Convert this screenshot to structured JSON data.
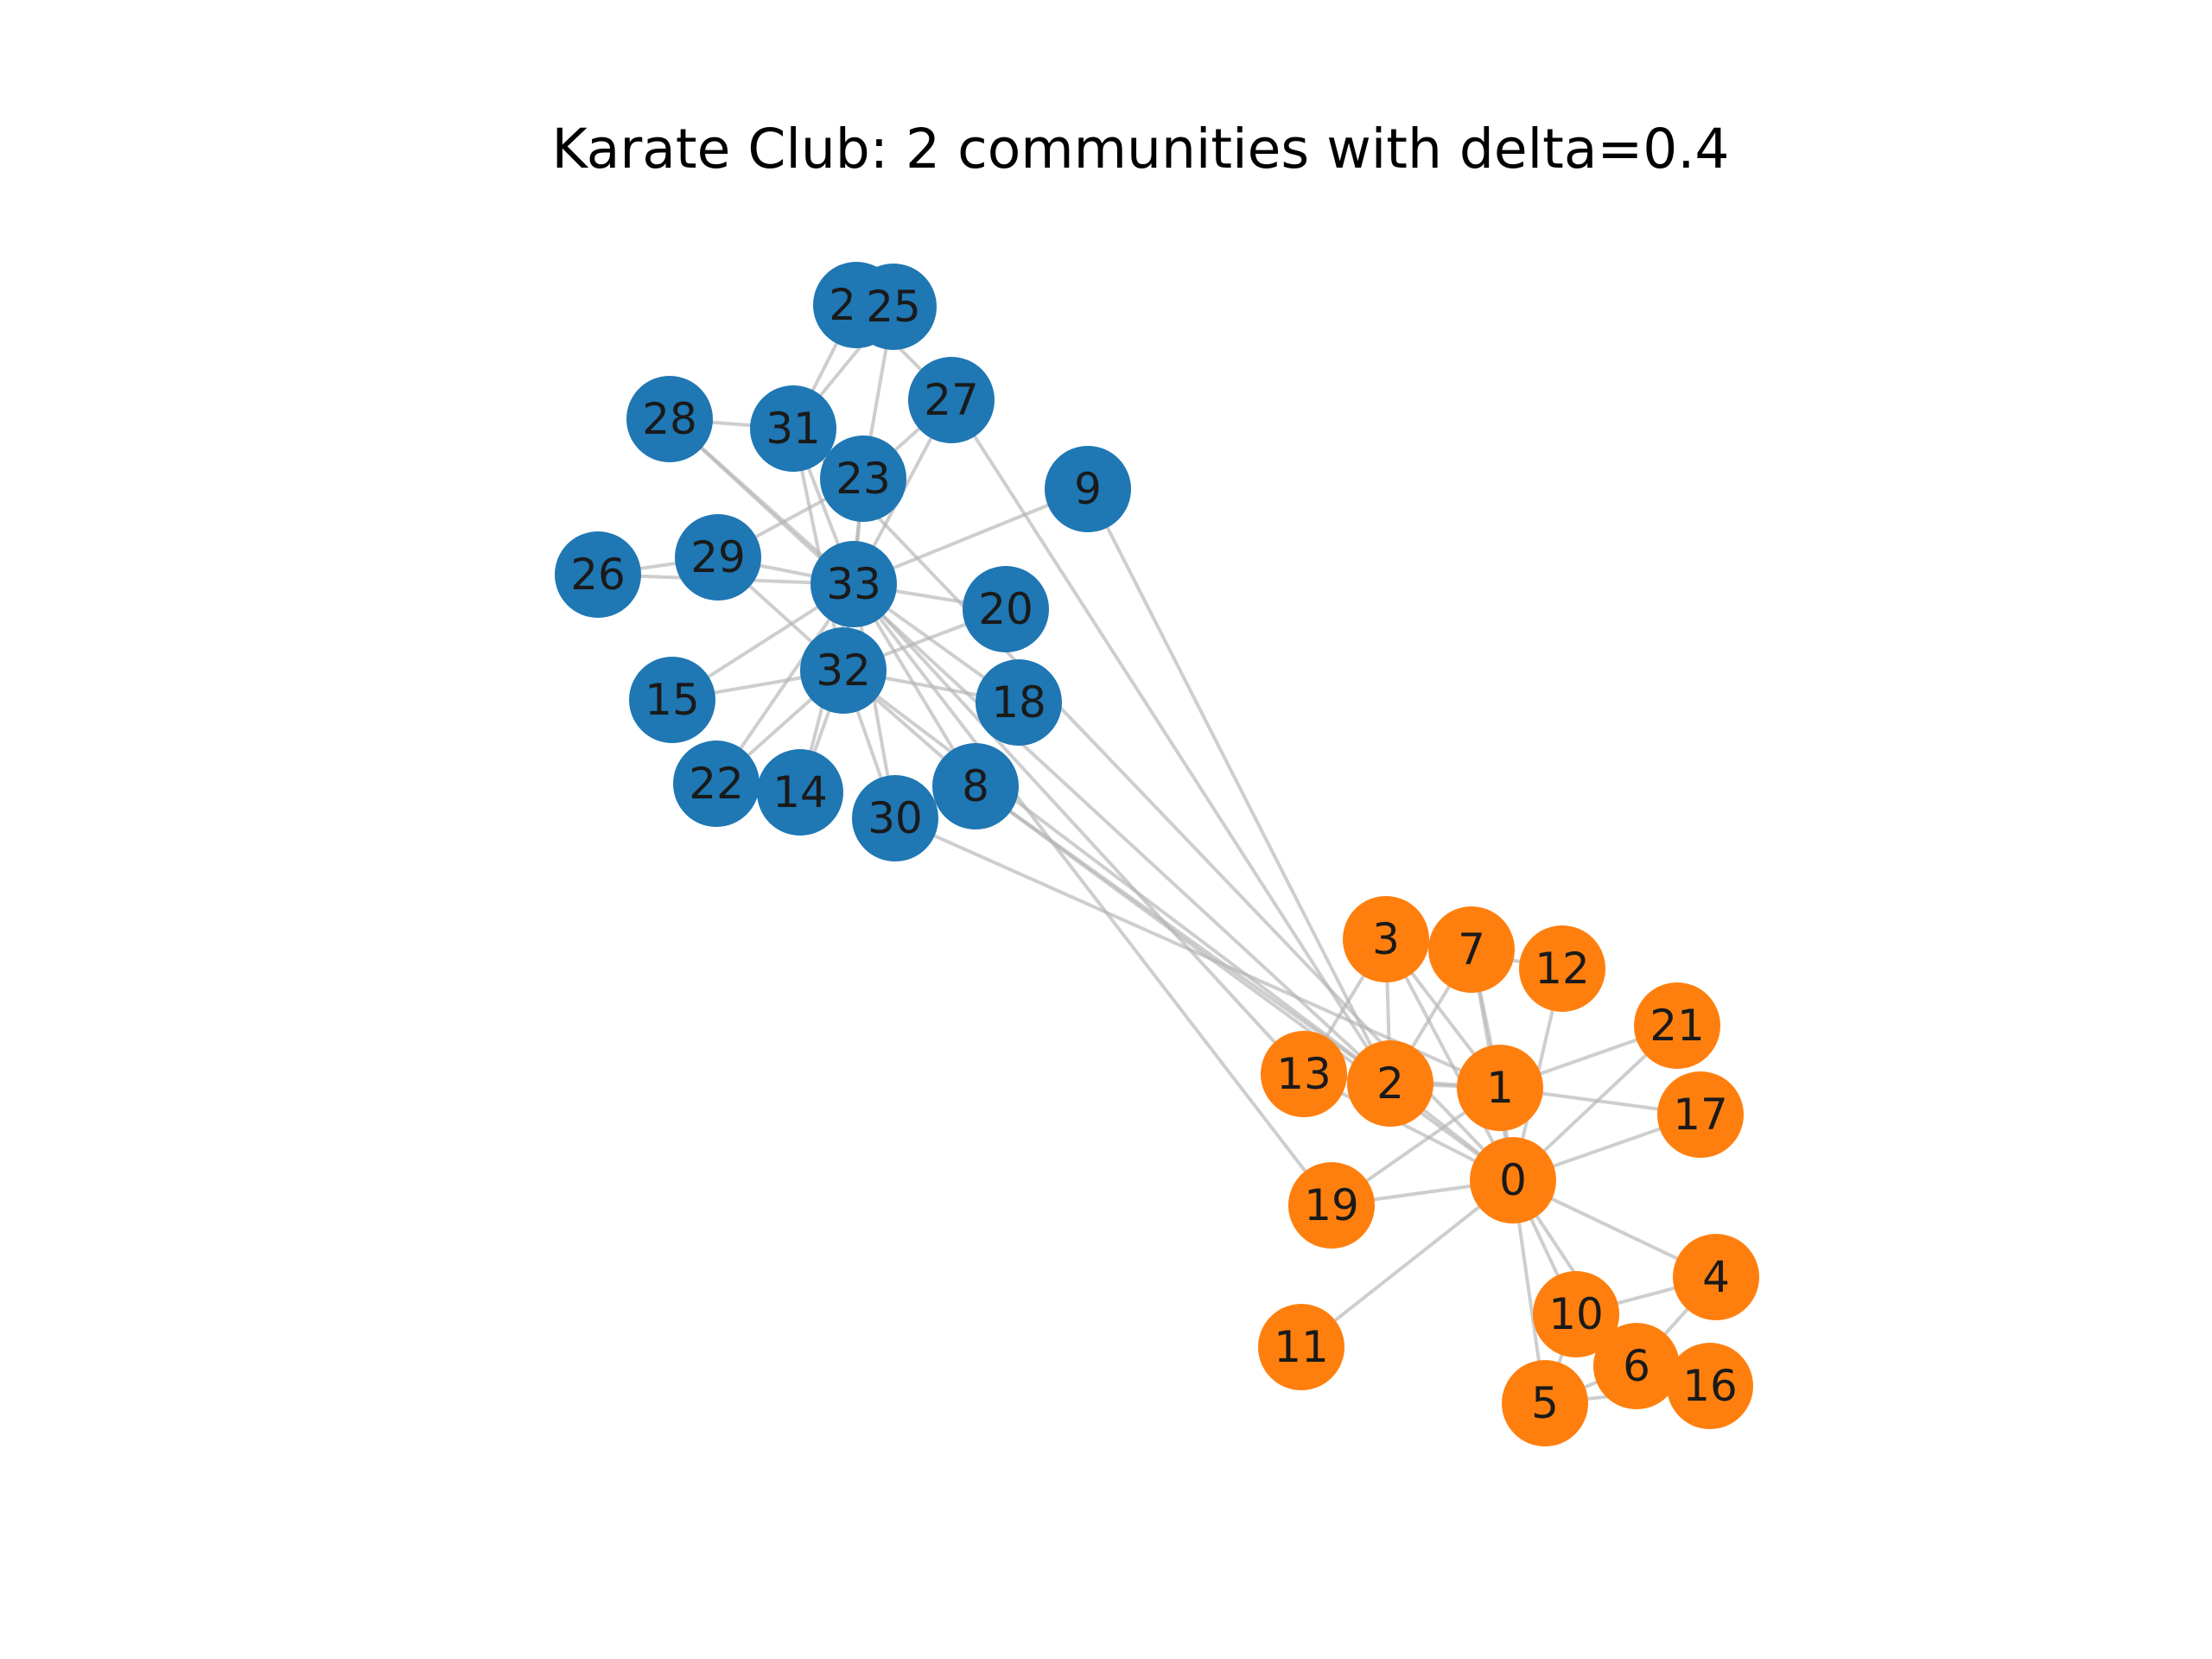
{
  "title": "Karate Club: 2 communities with delta=0.4",
  "colors": {
    "community_a": "#1f77b4",
    "community_b": "#ff7f0e",
    "edge": "#b3b3b3",
    "label": "#1a1a1a",
    "background": "#ffffff"
  },
  "communities": [
    {
      "color_key": "community_a",
      "members": [
        "8",
        "9",
        "14",
        "15",
        "18",
        "20",
        "22",
        "23",
        "24",
        "25",
        "26",
        "27",
        "28",
        "29",
        "30",
        "31",
        "32",
        "33"
      ]
    },
    {
      "color_key": "community_b",
      "members": [
        "0",
        "1",
        "2",
        "3",
        "4",
        "5",
        "6",
        "7",
        "10",
        "11",
        "12",
        "13",
        "16",
        "17",
        "19",
        "21"
      ]
    }
  ],
  "nodes": [
    {
      "id": "0",
      "label": "0"
    },
    {
      "id": "1",
      "label": "1"
    },
    {
      "id": "2",
      "label": "2"
    },
    {
      "id": "3",
      "label": "3"
    },
    {
      "id": "4",
      "label": "4"
    },
    {
      "id": "5",
      "label": "5"
    },
    {
      "id": "6",
      "label": "6"
    },
    {
      "id": "7",
      "label": "7"
    },
    {
      "id": "8",
      "label": "8"
    },
    {
      "id": "9",
      "label": "9"
    },
    {
      "id": "10",
      "label": "10"
    },
    {
      "id": "11",
      "label": "11"
    },
    {
      "id": "12",
      "label": "12"
    },
    {
      "id": "13",
      "label": "13"
    },
    {
      "id": "14",
      "label": "14"
    },
    {
      "id": "15",
      "label": "15"
    },
    {
      "id": "16",
      "label": "16"
    },
    {
      "id": "17",
      "label": "17"
    },
    {
      "id": "18",
      "label": "18"
    },
    {
      "id": "19",
      "label": "19"
    },
    {
      "id": "20",
      "label": "20"
    },
    {
      "id": "21",
      "label": "21"
    },
    {
      "id": "22",
      "label": "22"
    },
    {
      "id": "23",
      "label": "23"
    },
    {
      "id": "24",
      "label": "24"
    },
    {
      "id": "25",
      "label": "25"
    },
    {
      "id": "26",
      "label": "26"
    },
    {
      "id": "27",
      "label": "27"
    },
    {
      "id": "28",
      "label": "28"
    },
    {
      "id": "29",
      "label": "29"
    },
    {
      "id": "30",
      "label": "30"
    },
    {
      "id": "31",
      "label": "31"
    },
    {
      "id": "32",
      "label": "32"
    },
    {
      "id": "33",
      "label": "33"
    }
  ],
  "edges": [
    [
      "0",
      "1"
    ],
    [
      "0",
      "2"
    ],
    [
      "0",
      "3"
    ],
    [
      "0",
      "4"
    ],
    [
      "0",
      "5"
    ],
    [
      "0",
      "6"
    ],
    [
      "0",
      "7"
    ],
    [
      "0",
      "8"
    ],
    [
      "0",
      "10"
    ],
    [
      "0",
      "11"
    ],
    [
      "0",
      "12"
    ],
    [
      "0",
      "13"
    ],
    [
      "0",
      "17"
    ],
    [
      "0",
      "19"
    ],
    [
      "0",
      "21"
    ],
    [
      "0",
      "31"
    ],
    [
      "1",
      "2"
    ],
    [
      "1",
      "3"
    ],
    [
      "1",
      "7"
    ],
    [
      "1",
      "13"
    ],
    [
      "1",
      "17"
    ],
    [
      "1",
      "19"
    ],
    [
      "1",
      "21"
    ],
    [
      "1",
      "30"
    ],
    [
      "2",
      "3"
    ],
    [
      "2",
      "7"
    ],
    [
      "2",
      "8"
    ],
    [
      "2",
      "9"
    ],
    [
      "2",
      "13"
    ],
    [
      "2",
      "27"
    ],
    [
      "2",
      "28"
    ],
    [
      "2",
      "32"
    ],
    [
      "3",
      "7"
    ],
    [
      "3",
      "12"
    ],
    [
      "3",
      "13"
    ],
    [
      "4",
      "6"
    ],
    [
      "4",
      "10"
    ],
    [
      "5",
      "6"
    ],
    [
      "5",
      "10"
    ],
    [
      "5",
      "16"
    ],
    [
      "6",
      "16"
    ],
    [
      "8",
      "30"
    ],
    [
      "8",
      "32"
    ],
    [
      "8",
      "33"
    ],
    [
      "9",
      "33"
    ],
    [
      "13",
      "33"
    ],
    [
      "14",
      "32"
    ],
    [
      "14",
      "33"
    ],
    [
      "15",
      "32"
    ],
    [
      "15",
      "33"
    ],
    [
      "18",
      "32"
    ],
    [
      "18",
      "33"
    ],
    [
      "19",
      "33"
    ],
    [
      "20",
      "32"
    ],
    [
      "20",
      "33"
    ],
    [
      "22",
      "32"
    ],
    [
      "22",
      "33"
    ],
    [
      "23",
      "25"
    ],
    [
      "23",
      "27"
    ],
    [
      "23",
      "29"
    ],
    [
      "23",
      "32"
    ],
    [
      "23",
      "33"
    ],
    [
      "24",
      "25"
    ],
    [
      "24",
      "27"
    ],
    [
      "24",
      "31"
    ],
    [
      "25",
      "31"
    ],
    [
      "26",
      "29"
    ],
    [
      "26",
      "33"
    ],
    [
      "27",
      "33"
    ],
    [
      "28",
      "31"
    ],
    [
      "28",
      "33"
    ],
    [
      "29",
      "32"
    ],
    [
      "29",
      "33"
    ],
    [
      "30",
      "32"
    ],
    [
      "30",
      "33"
    ],
    [
      "31",
      "32"
    ],
    [
      "31",
      "33"
    ],
    [
      "32",
      "33"
    ]
  ]
}
